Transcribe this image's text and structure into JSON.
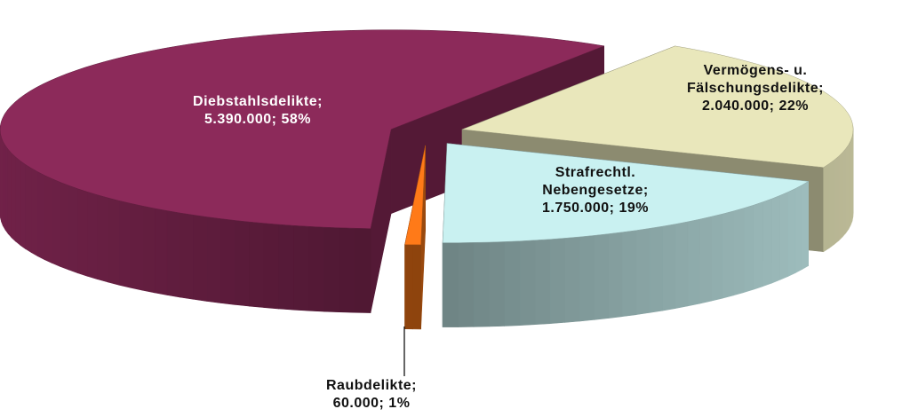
{
  "chart_data": {
    "type": "pie",
    "categories": [
      "Diebstahlsdelikte;",
      "Vermögens- u. Fälschungsdelikte;",
      "Strafrechtl. Nebengesetze;",
      "Raubdelikte;"
    ],
    "values": [
      5390000,
      2040000,
      1750000,
      60000
    ],
    "value_labels": [
      "5.390.000; 58%",
      "2.040.000; 22%",
      "1.750.000; 19%",
      "60.000; 1%"
    ],
    "colors": [
      "#8c2a5a",
      "#e9e7bb",
      "#c9f1f1",
      "#ff7a18"
    ]
  }
}
